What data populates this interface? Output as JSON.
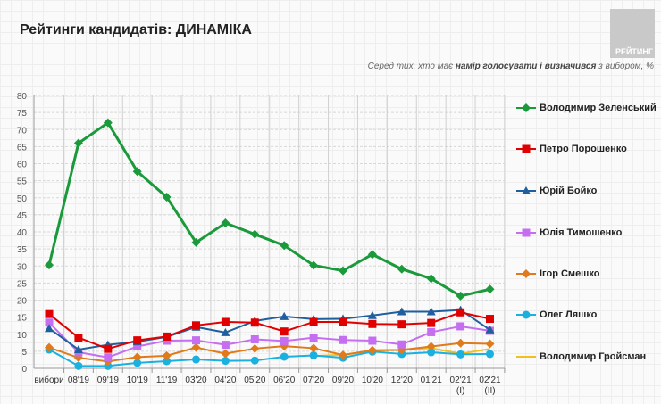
{
  "header": {
    "title": "Рейтинги кандидатів: ДИНАМІКА",
    "logo_text": "РЕЙТИНГ",
    "subtitle_pre": "Серед тих, хто має ",
    "subtitle_bold": "намір голосувати і визначився",
    "subtitle_post": " з вибором, %"
  },
  "chart_data": {
    "type": "line",
    "categories": [
      "вибори",
      "08'19",
      "09'19",
      "10'19",
      "11'19",
      "03'20",
      "04'20",
      "05'20",
      "06'20",
      "07'20",
      "09'20",
      "10'20",
      "12'20",
      "01'21",
      "02'21\n(I)",
      "02'21\n(II)"
    ],
    "ylim": [
      0,
      80
    ],
    "yticks": [
      0,
      5,
      10,
      15,
      20,
      25,
      30,
      35,
      40,
      45,
      50,
      55,
      60,
      65,
      70,
      75,
      80
    ],
    "grid": true,
    "legend": "right",
    "series": [
      {
        "name": "Володимир Зеленський",
        "color": "#1a9a3a",
        "marker": "diamond",
        "values": [
          30.3,
          66,
          72,
          57.7,
          50.2,
          36.9,
          42.6,
          39.3,
          36,
          30.2,
          28.6,
          33.4,
          29.1,
          26.3,
          21.2,
          23.2
        ]
      },
      {
        "name": "Петро Порошенко",
        "color": "#e00000",
        "marker": "square",
        "values": [
          15.9,
          9,
          5.7,
          8.2,
          9.3,
          12.6,
          13.6,
          13.4,
          10.8,
          13.6,
          13.6,
          13.0,
          12.9,
          13.3,
          16.4,
          14.5
        ]
      },
      {
        "name": "Юрій Бойко",
        "color": "#1f5fa0",
        "marker": "triangle",
        "values": [
          11.7,
          5.5,
          6.9,
          7.8,
          9.2,
          12.1,
          10.5,
          13.9,
          15.2,
          14.4,
          14.5,
          15.5,
          16.6,
          16.6,
          17.1,
          11.3
        ]
      },
      {
        "name": "Юлія Тимошенко",
        "color": "#c56ef0",
        "marker": "square",
        "values": [
          13.4,
          4.7,
          3.2,
          6.4,
          8.1,
          8.2,
          6.9,
          8.5,
          8.0,
          9.0,
          8.3,
          8.1,
          7.0,
          10.6,
          12.3,
          11.0
        ]
      },
      {
        "name": "Ігор Смешко",
        "color": "#e07a1a",
        "marker": "diamond",
        "values": [
          6.1,
          3.1,
          2.0,
          3.3,
          3.7,
          6.1,
          4.3,
          5.8,
          6.5,
          5.9,
          3.9,
          5.3,
          5.4,
          6.4,
          7.4,
          7.2
        ]
      },
      {
        "name": "Олег Ляшко",
        "color": "#1ab0e0",
        "marker": "circle",
        "values": [
          5.5,
          0.7,
          0.7,
          1.6,
          2.1,
          2.6,
          2.2,
          2.3,
          3.4,
          3.8,
          3.1,
          4.9,
          4.2,
          4.7,
          4.1,
          4.2
        ]
      },
      {
        "name": "Володимир Гройсман",
        "color": "#f0c020",
        "marker": "none",
        "values": [
          null,
          null,
          null,
          null,
          null,
          null,
          null,
          null,
          null,
          3.6,
          4.0,
          5.2,
          5.4,
          5.9,
          4.3,
          5.7
        ]
      }
    ]
  }
}
